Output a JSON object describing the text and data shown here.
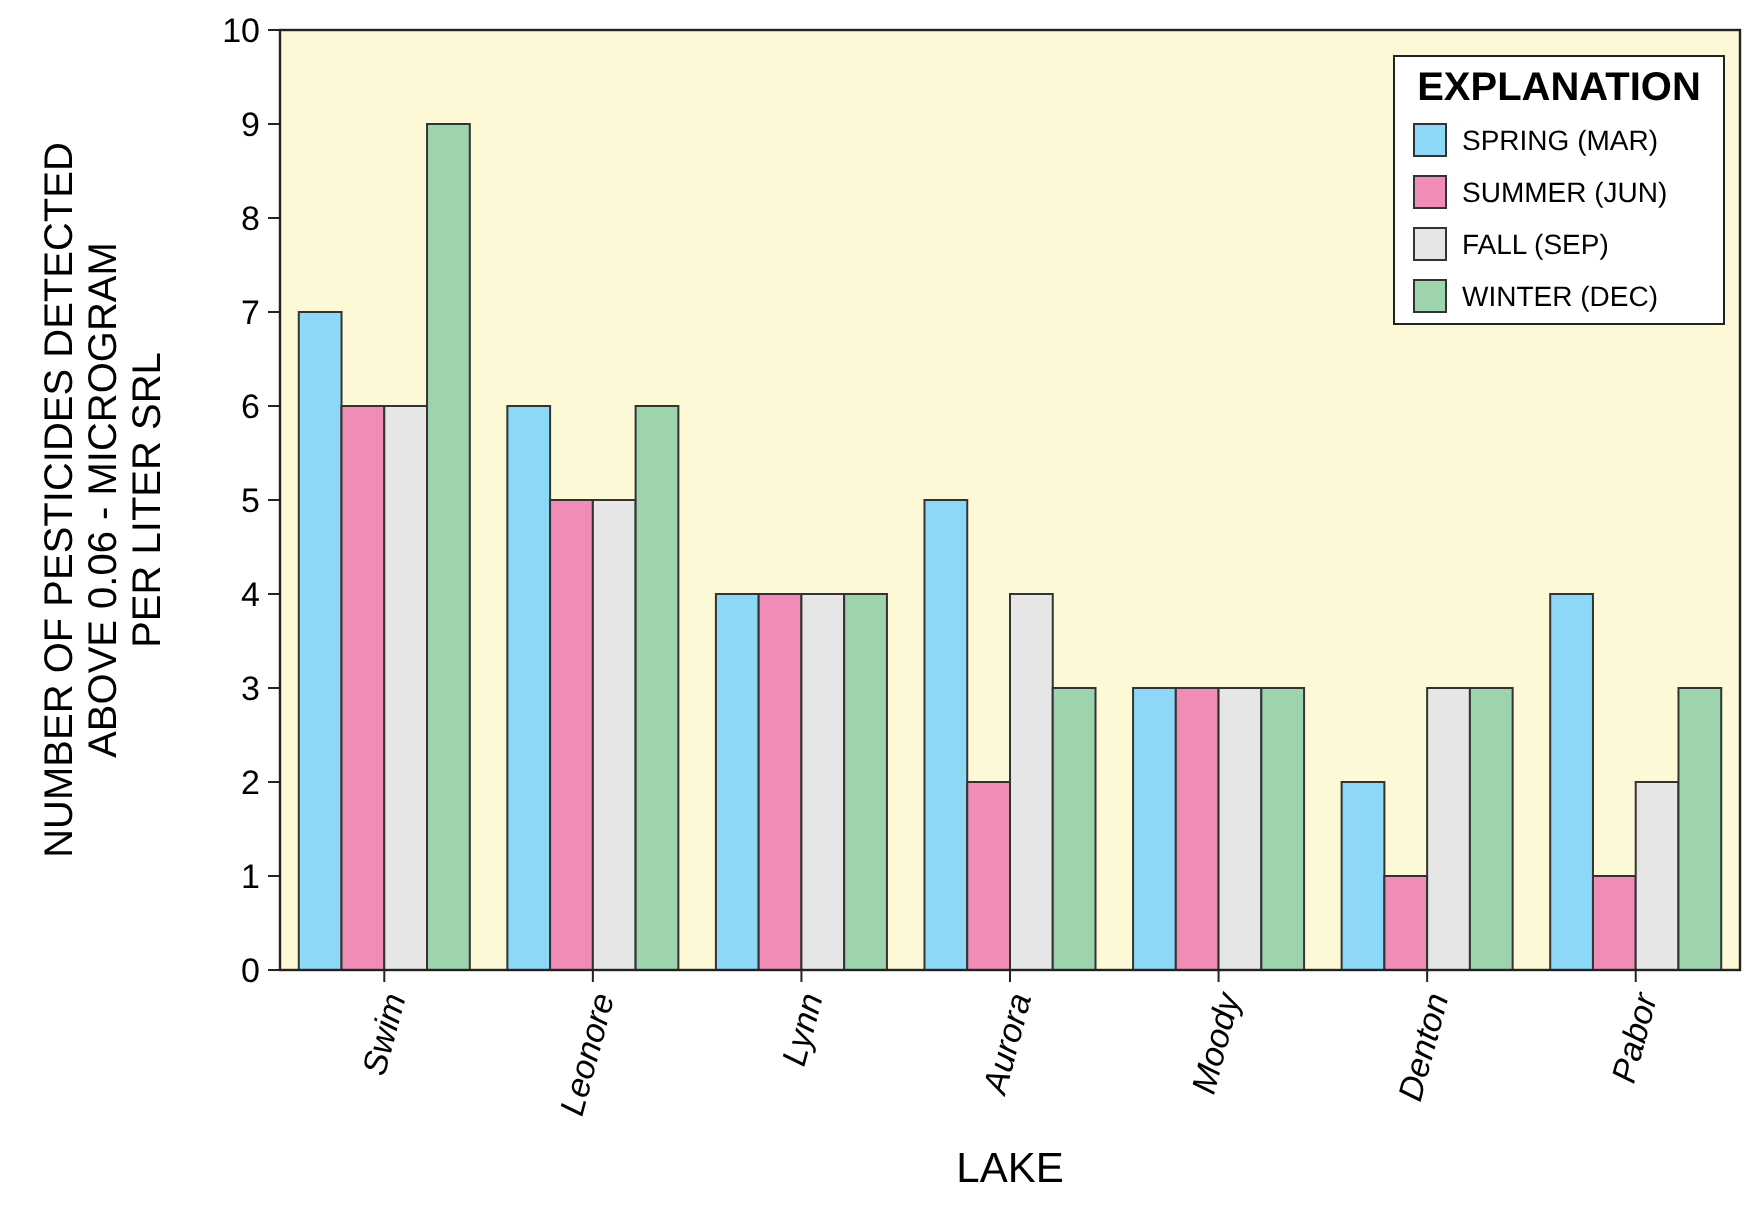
{
  "chart_data": {
    "type": "bar",
    "xlabel": "LAKE",
    "ylabel": "NUMBER OF PESTICIDES DETECTED\nABOVE 0.06 - MICROGRAM\nPER LITER SRL",
    "legend_title": "EXPLANATION",
    "legend": "top right",
    "grid": false,
    "categories": [
      "Swim",
      "Leonore",
      "Lynn",
      "Aurora",
      "Moody",
      "Denton",
      "Pabor"
    ],
    "ylim": [
      0,
      10
    ],
    "yticks": [
      0,
      1,
      2,
      3,
      4,
      5,
      6,
      7,
      8,
      9,
      10
    ],
    "series": [
      {
        "name": "SPRING (MAR)",
        "color": "#8dd8f6",
        "values": [
          7,
          6,
          4,
          5,
          3,
          2,
          4
        ]
      },
      {
        "name": "SUMMER (JUN)",
        "color": "#f08cb8",
        "values": [
          6,
          5,
          4,
          2,
          3,
          1,
          1
        ]
      },
      {
        "name": "FALL (SEP)",
        "color": "#e6e6e6",
        "values": [
          6,
          5,
          4,
          4,
          3,
          3,
          2
        ]
      },
      {
        "name": "WINTER (DEC)",
        "color": "#9dd4ad",
        "values": [
          9,
          6,
          4,
          3,
          3,
          3,
          3
        ]
      }
    ]
  }
}
